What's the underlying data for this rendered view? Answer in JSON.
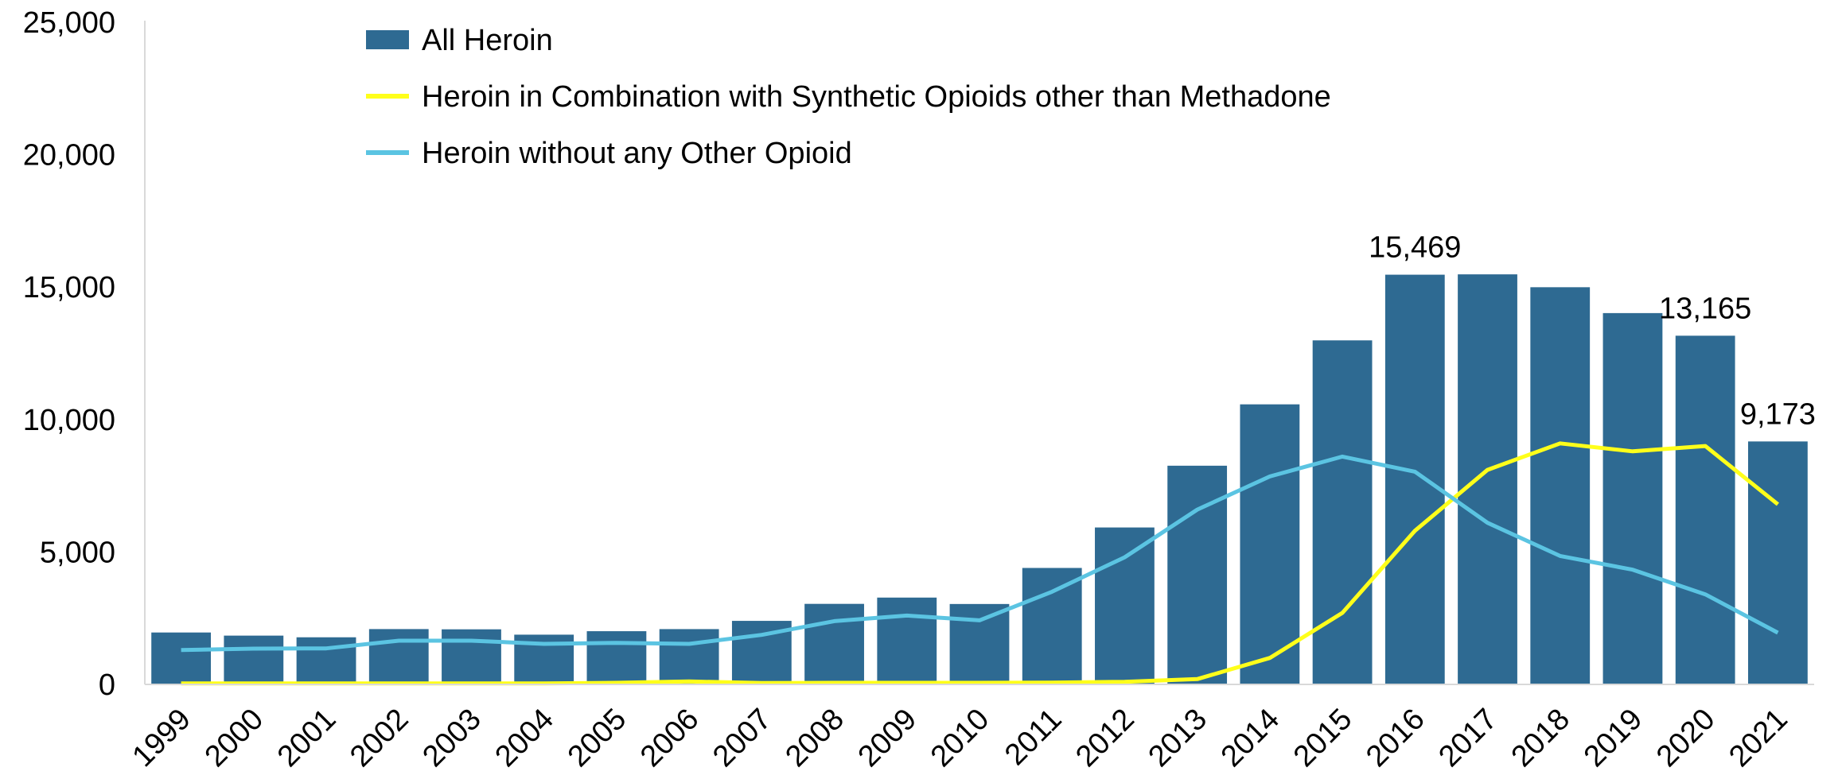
{
  "chart_data": {
    "type": "bar",
    "title": "",
    "xlabel": "",
    "ylabel": "",
    "ylim": [
      0,
      25000
    ],
    "yticks": [
      0,
      5000,
      10000,
      15000,
      20000,
      25000
    ],
    "ytick_labels": [
      "0",
      "5,000",
      "10,000",
      "15,000",
      "20,000",
      "25,000"
    ],
    "grid": false,
    "legend_position": "top-left",
    "categories": [
      "1999",
      "2000",
      "2001",
      "2002",
      "2003",
      "2004",
      "2005",
      "2006",
      "2007",
      "2008",
      "2009",
      "2010",
      "2011",
      "2012",
      "2013",
      "2014",
      "2015",
      "2016",
      "2017",
      "2018",
      "2019",
      "2020",
      "2021"
    ],
    "series": [
      {
        "name": "All Heroin",
        "kind": "bar",
        "color": "#2e6a92",
        "values": [
          1960,
          1842,
          1779,
          2089,
          2080,
          1878,
          2009,
          2088,
          2399,
          3041,
          3278,
          3036,
          4397,
          5925,
          8257,
          10574,
          12989,
          15469,
          15482,
          14996,
          14019,
          13165,
          9173
        ]
      },
      {
        "name": "Heroin in Combination with Synthetic Opioids other than Methadone",
        "kind": "line",
        "color": "#ffff1a",
        "values": [
          40,
          40,
          40,
          40,
          40,
          40,
          60,
          110,
          50,
          60,
          60,
          60,
          70,
          100,
          200,
          1000,
          2700,
          5800,
          8100,
          9100,
          8800,
          9000,
          6800
        ]
      },
      {
        "name": "Heroin without any Other Opioid",
        "kind": "line",
        "color": "#5bc4e2",
        "values": [
          1300,
          1350,
          1360,
          1650,
          1650,
          1530,
          1570,
          1530,
          1870,
          2390,
          2600,
          2420,
          3500,
          4800,
          6600,
          7850,
          8600,
          8030,
          6100,
          4850,
          4330,
          3400,
          1950
        ]
      }
    ],
    "annotations": [
      {
        "category": "2016",
        "text": "15,469"
      },
      {
        "category": "2020",
        "text": "13,165"
      },
      {
        "category": "2021",
        "text": "9,173"
      }
    ]
  }
}
